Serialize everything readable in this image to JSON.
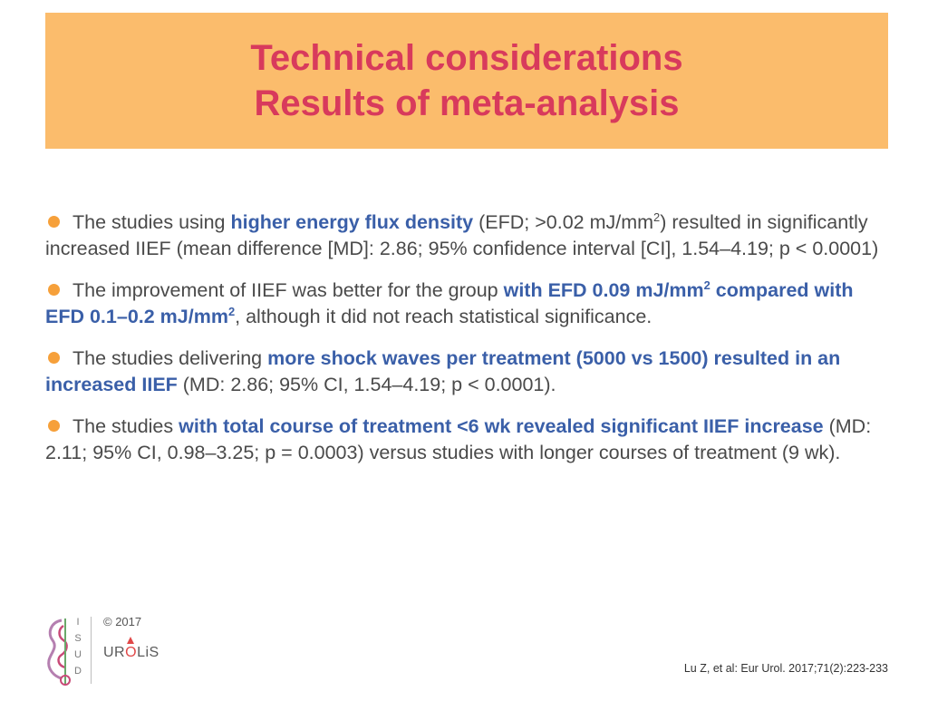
{
  "title": {
    "line1": "Technical considerations",
    "line2": "Results of meta-analysis"
  },
  "bullets": [
    {
      "segments": [
        {
          "text": "The studies using ",
          "highlight": false
        },
        {
          "text": "higher energy flux density",
          "highlight": true
        },
        {
          "text": " (EFD; >0.02 mJ/mm",
          "highlight": false
        },
        {
          "text": "2",
          "highlight": false,
          "sup": true
        },
        {
          "text": ") resulted in significantly increased IIEF (mean difference [MD]: 2.86; 95% confidence interval [CI], 1.54–4.19; p < 0.0001)",
          "highlight": false
        }
      ]
    },
    {
      "segments": [
        {
          "text": "The improvement of IIEF was better for the group ",
          "highlight": false
        },
        {
          "text": "with EFD 0.09 mJ/mm",
          "highlight": true
        },
        {
          "text": "2",
          "highlight": true,
          "sup": true
        },
        {
          "text": " compared with EFD 0.1–0.2 mJ/mm",
          "highlight": true
        },
        {
          "text": "2",
          "highlight": true,
          "sup": true
        },
        {
          "text": ", although it did not reach statistical significance.",
          "highlight": false
        }
      ]
    },
    {
      "segments": [
        {
          "text": "The studies delivering ",
          "highlight": false
        },
        {
          "text": "more shock waves per treatment (5000 vs 1500) resulted in an increased IIEF",
          "highlight": true
        },
        {
          "text": " (MD: 2.86; 95% CI, 1.54–4.19; p < 0.0001).",
          "highlight": false
        }
      ]
    },
    {
      "segments": [
        {
          "text": "The studies ",
          "highlight": false
        },
        {
          "text": "with total course of treatment <6 wk revealed significant IIEF increase",
          "highlight": true
        },
        {
          "text": " (MD: 2.11; 95% CI, 0.98–3.25; p = 0.0003) versus studies with longer courses of treatment (9 wk).",
          "highlight": false
        }
      ]
    }
  ],
  "logo": {
    "isud_letters": [
      "I",
      "S",
      "U",
      "D"
    ],
    "copyright": "© 2017",
    "urolis": {
      "pre": "UR",
      "o": "O",
      "post": "LiS"
    }
  },
  "citation": "Lu Z, et al: Eur Urol. 2017;71(2):223-233",
  "colors": {
    "banner": "#fbbc6c",
    "title": "#d83a5c",
    "highlight": "#3a5fa8",
    "bullet_dot": "#f6a03a",
    "body_text": "#4a4a4a"
  }
}
